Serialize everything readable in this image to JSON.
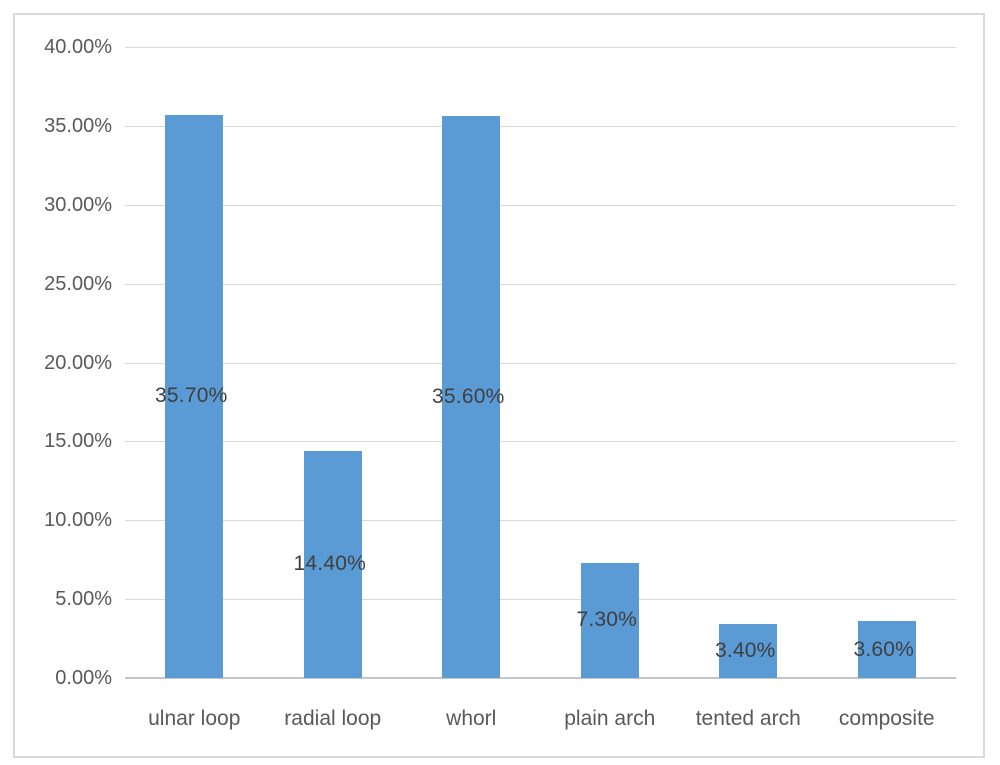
{
  "chart_data": {
    "type": "bar",
    "title": "",
    "xlabel": "",
    "ylabel": "",
    "categories": [
      "ulnar loop",
      "radial loop",
      "whorl",
      "plain arch",
      "tented arch",
      "composite"
    ],
    "values": [
      35.7,
      14.4,
      35.6,
      7.3,
      3.4,
      3.6
    ],
    "data_labels": [
      "35.70%",
      "14.40%",
      "35.60%",
      "7.30%",
      "3.40%",
      "3.60%"
    ],
    "y_tick_labels": [
      "0.00%",
      "5.00%",
      "10.00%",
      "15.00%",
      "20.00%",
      "25.00%",
      "30.00%",
      "35.00%",
      "40.00%"
    ],
    "ylim": [
      0,
      40
    ],
    "y_step": 5,
    "grid": "horizontal",
    "legend": "none",
    "bar_color": "#5b9bd5",
    "data_label_color": "#3f3f3f",
    "axis_text_color": "#595959",
    "gridline_color": "#d9d9d9",
    "axis_line_color": "#c6c6c6",
    "frame_border_color": "#d9d9d9"
  }
}
